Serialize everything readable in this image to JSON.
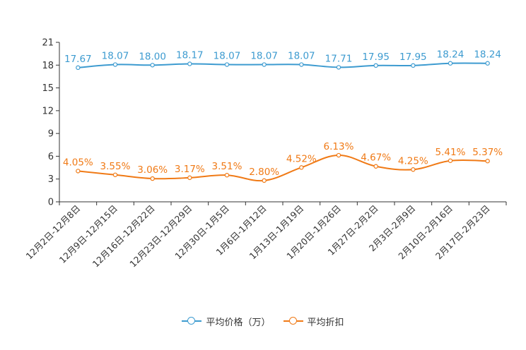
{
  "chart_data": {
    "type": "line",
    "title": "",
    "xlabel": "",
    "ylabel": "",
    "ylim": [
      0,
      21
    ],
    "yticks": [
      "0",
      "3",
      "6",
      "9",
      "12",
      "15",
      "18",
      "21"
    ],
    "categories": [
      "12月2日-12月8日",
      "12月9日-12月15日",
      "12月16日-12月22日",
      "12月23日-12月29日",
      "12月30日-1月5日",
      "1月6日-1月12日",
      "1月13日-1月19日",
      "1月20日-1月26日",
      "1月27日-2月2日",
      "2月3日-2月9日",
      "2月10日-2月16日",
      "2月17日-2月23日"
    ],
    "series": [
      {
        "name": "平均价格（万）",
        "color": "#3d9bd0",
        "values": [
          17.67,
          18.07,
          18.0,
          18.17,
          18.07,
          18.07,
          18.07,
          17.71,
          17.95,
          17.95,
          18.24,
          18.24
        ],
        "labels": [
          "17.67",
          "18.07",
          "18.00",
          "18.17",
          "18.07",
          "18.07",
          "18.07",
          "17.71",
          "17.95",
          "17.95",
          "18.24",
          "18.24"
        ]
      },
      {
        "name": "平均折扣",
        "color": "#f07a16",
        "values": [
          4.05,
          3.55,
          3.06,
          3.17,
          3.51,
          2.8,
          4.52,
          6.13,
          4.67,
          4.25,
          5.41,
          5.37
        ],
        "labels": [
          "4.05%",
          "3.55%",
          "3.06%",
          "3.17%",
          "3.51%",
          "2.80%",
          "4.52%",
          "6.13%",
          "4.67%",
          "4.25%",
          "5.41%",
          "5.37%"
        ]
      }
    ],
    "legend": {
      "position": "bottom"
    }
  }
}
